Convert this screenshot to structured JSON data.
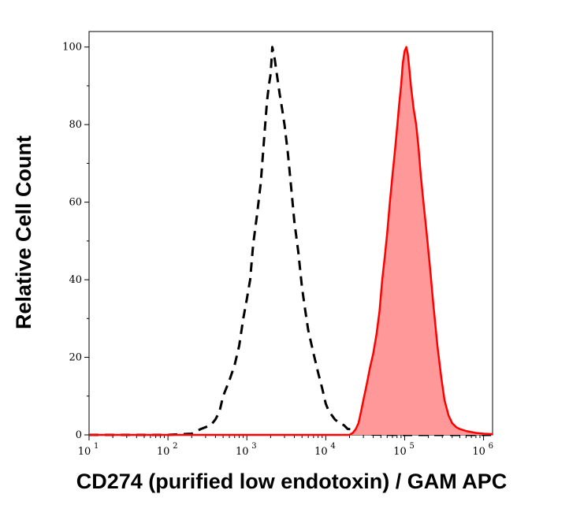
{
  "chart_data": {
    "type": "area",
    "title": "",
    "xlabel": "CD274 (purified low endotoxin) / GAM APC",
    "ylabel": "Relative Cell Count",
    "x_scale": "log10",
    "xlim": [
      10,
      1300000
    ],
    "ylim": [
      0,
      104
    ],
    "grid": false,
    "legend": "none",
    "y_ticks": [
      0,
      20,
      40,
      60,
      80,
      100
    ],
    "y_tick_labels": [
      "0",
      "20",
      "40",
      "60",
      "80",
      "100"
    ],
    "x_ticks": [
      10,
      100,
      1000,
      10000,
      100000,
      1000000
    ],
    "x_tick_bases": [
      "10",
      "10",
      "10",
      "10",
      "10",
      "10"
    ],
    "x_tick_exponents": [
      "1",
      "2",
      "3",
      "4",
      "5",
      "6"
    ],
    "colors": {
      "control": "#000000",
      "stained_line": "#ff0000",
      "stained_fill": "#ff9999"
    },
    "series": [
      {
        "style": "dashed",
        "color": "#000000",
        "x": [
          10,
          100,
          200,
          260,
          300,
          350,
          400,
          450,
          500,
          600,
          700,
          800,
          900,
          1000,
          1100,
          1200,
          1350,
          1500,
          1650,
          1800,
          1900,
          2000,
          2100,
          2250,
          2400,
          2600,
          2800,
          3000,
          3300,
          3600,
          4000,
          4500,
          5000,
          5500,
          6000,
          7000,
          8000,
          9000,
          10000,
          11000,
          12000,
          13000,
          15000,
          17000,
          19000,
          21000,
          23000,
          26000,
          30000,
          40000,
          100000,
          1300000
        ],
        "y": [
          0,
          0,
          0.3,
          1.5,
          2,
          2.5,
          4,
          6,
          10,
          14,
          18,
          23,
          30,
          35,
          40,
          49,
          57,
          65,
          76,
          86,
          90,
          93,
          100,
          97,
          93,
          88,
          84,
          80,
          73,
          65,
          55,
          47,
          38,
          32,
          27,
          21,
          16,
          12,
          8,
          6,
          5,
          4,
          3,
          2.5,
          1.5,
          1.5,
          1,
          0.5,
          0.3,
          0.1,
          0,
          0
        ]
      },
      {
        "style": "filled",
        "color": "#ff0000",
        "fill": "#ff9999",
        "x": [
          10,
          20000,
          22000,
          24000,
          26000,
          28000,
          30000,
          33000,
          36000,
          40000,
          44000,
          48000,
          52000,
          56000,
          60000,
          65000,
          70000,
          75000,
          80000,
          85000,
          90000,
          95000,
          100000,
          105000,
          110000,
          115000,
          120000,
          130000,
          140000,
          150000,
          160000,
          175000,
          190000,
          210000,
          230000,
          260000,
          290000,
          320000,
          360000,
          400000,
          450000,
          500000,
          600000,
          800000,
          1000000,
          1300000
        ],
        "y": [
          0,
          0,
          0.5,
          1.5,
          3,
          6,
          9,
          13,
          17,
          21,
          26,
          32,
          40,
          46,
          52,
          60,
          67,
          73,
          79,
          85,
          90,
          96,
          99,
          100,
          98,
          94,
          90,
          84,
          80,
          74,
          67,
          59,
          52,
          43,
          34,
          23,
          15,
          9,
          5,
          3,
          2,
          1.5,
          1,
          0.5,
          0.3,
          0.2
        ]
      }
    ]
  }
}
